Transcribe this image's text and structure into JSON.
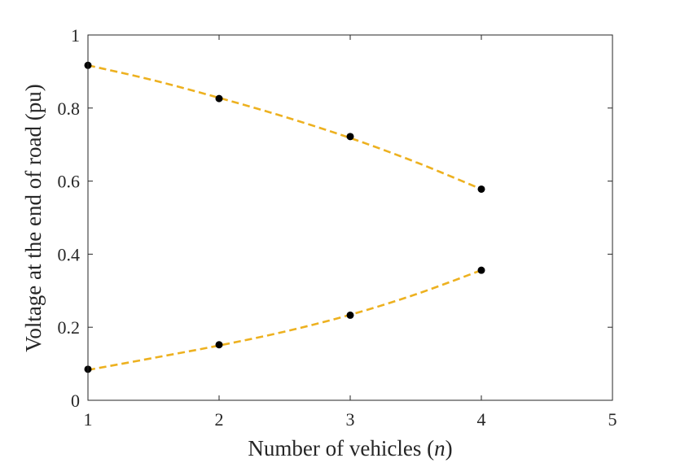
{
  "chart_data": {
    "type": "line",
    "xlabel": "Number of vehicles (n)",
    "ylabel": "Voltage at the end of road (pu)",
    "xlim": [
      1,
      5
    ],
    "ylim": [
      0,
      1
    ],
    "xticks": [
      1,
      2,
      3,
      4,
      5
    ],
    "yticks": [
      0,
      0.2,
      0.4,
      0.6,
      0.8,
      1
    ],
    "xtick_labels": [
      "1",
      "2",
      "3",
      "4",
      "5"
    ],
    "ytick_labels": [
      "0",
      "0.2",
      "0.4",
      "0.6",
      "0.8",
      "1"
    ],
    "grid": false,
    "colors": {
      "line": "#EDB120",
      "marker": "#000000",
      "axes": "#262626"
    },
    "series": [
      {
        "style": "dashed-curve",
        "curve": [
          [
            1,
            0.917
          ],
          [
            1.5,
            0.876
          ],
          [
            2,
            0.828
          ],
          [
            2.5,
            0.776
          ],
          [
            3,
            0.718
          ],
          [
            3.5,
            0.652
          ],
          [
            4,
            0.578
          ]
        ],
        "points": [
          [
            1,
            0.917
          ],
          [
            2,
            0.826
          ],
          [
            3,
            0.722
          ],
          [
            4,
            0.578
          ]
        ]
      },
      {
        "style": "dashed-curve",
        "curve": [
          [
            1,
            0.083
          ],
          [
            1.5,
            0.116
          ],
          [
            2,
            0.15
          ],
          [
            2.5,
            0.188
          ],
          [
            3,
            0.234
          ],
          [
            3.5,
            0.29
          ],
          [
            4,
            0.356
          ]
        ],
        "points": [
          [
            1,
            0.085
          ],
          [
            2,
            0.152
          ],
          [
            3,
            0.233
          ],
          [
            4,
            0.356
          ]
        ]
      }
    ]
  }
}
